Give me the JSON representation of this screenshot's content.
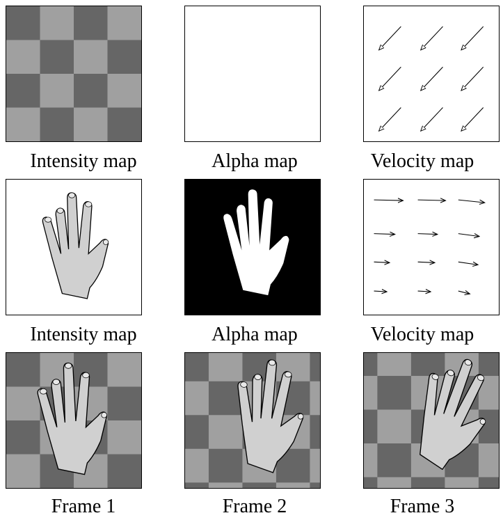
{
  "rows": [
    {
      "captions": [
        "Intensity map",
        "Alpha map",
        "Velocity map"
      ]
    },
    {
      "captions": [
        "Intensity map",
        "Alpha map",
        "Velocity map"
      ]
    },
    {
      "captions": [
        "Frame 1",
        "Frame 2",
        "Frame 3"
      ]
    }
  ],
  "colors": {
    "checker_dark": "#666666",
    "checker_light": "#a0a0a0",
    "hand_fill": "#d0d0d0",
    "alpha_bg": "#000000",
    "alpha_fg": "#ffffff"
  }
}
